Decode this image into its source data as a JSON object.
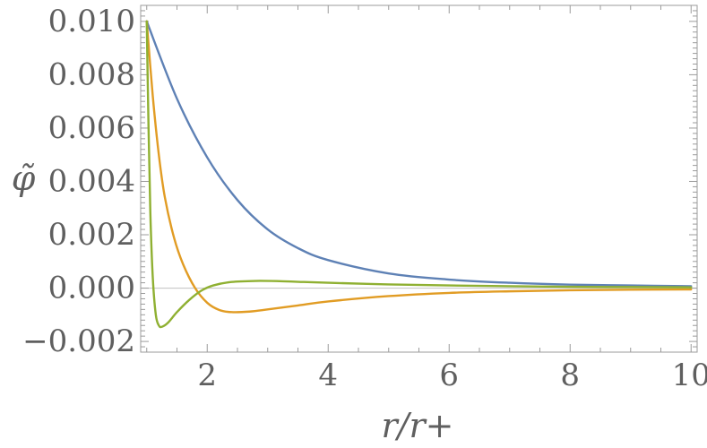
{
  "chart_data": {
    "type": "line",
    "title": "",
    "xlabel": "r/r+",
    "ylabel": "φ̃",
    "xlim": [
      0.9,
      10.1
    ],
    "ylim": [
      -0.0024,
      0.0106
    ],
    "xticks": [
      2,
      4,
      6,
      8,
      10
    ],
    "yticks": [
      -0.002,
      0.0,
      0.002,
      0.004,
      0.006,
      0.008,
      0.01
    ],
    "ytick_labels": [
      "−0.002",
      "0.000",
      "0.002",
      "0.004",
      "0.006",
      "0.008",
      "0.010"
    ],
    "xtick_labels": [
      "2",
      "4",
      "6",
      "8",
      "10"
    ],
    "grid": false,
    "frame": true,
    "zero_line": true,
    "series": [
      {
        "color": "#5e81b5",
        "x": [
          1.0,
          1.5,
          2.0,
          2.5,
          3.0,
          3.5,
          4.0,
          5.0,
          6.0,
          7.0,
          8.0,
          9.0,
          10.0
        ],
        "y": [
          0.01,
          0.0071,
          0.0049,
          0.0033,
          0.0022,
          0.0015,
          0.00105,
          0.00055,
          0.00032,
          0.0002,
          0.00013,
          0.0001,
          7e-05
        ]
      },
      {
        "color": "#e19c24",
        "x": [
          1.0,
          1.1,
          1.2,
          1.3,
          1.45,
          1.6,
          1.8,
          2.0,
          2.2,
          2.4,
          2.7,
          3.0,
          3.5,
          4.0,
          5.0,
          6.0,
          7.0,
          8.0,
          9.0,
          10.0
        ],
        "y": [
          0.01,
          0.0072,
          0.005,
          0.0034,
          0.0019,
          0.0009,
          0.0,
          -0.00055,
          -0.00082,
          -0.0009,
          -0.00088,
          -0.0008,
          -0.00065,
          -0.0005,
          -0.0003,
          -0.00018,
          -0.00012,
          -8e-05,
          -6e-05,
          -5e-05
        ]
      },
      {
        "color": "#8fb032",
        "x": [
          1.0,
          1.03,
          1.06,
          1.1,
          1.15,
          1.2,
          1.25,
          1.35,
          1.5,
          1.7,
          1.9,
          2.1,
          2.4,
          2.8,
          3.2,
          3.6,
          4.0,
          5.0,
          6.0,
          7.0,
          8.0,
          9.0,
          10.0
        ],
        "y": [
          0.01,
          0.006,
          0.0028,
          0.0004,
          -0.001,
          -0.0014,
          -0.00145,
          -0.0013,
          -0.0009,
          -0.00045,
          -0.0001,
          0.0001,
          0.00023,
          0.00027,
          0.00026,
          0.00023,
          0.0002,
          0.00014,
          0.0001,
          7e-05,
          5e-05,
          4e-05,
          3e-05
        ]
      }
    ]
  }
}
